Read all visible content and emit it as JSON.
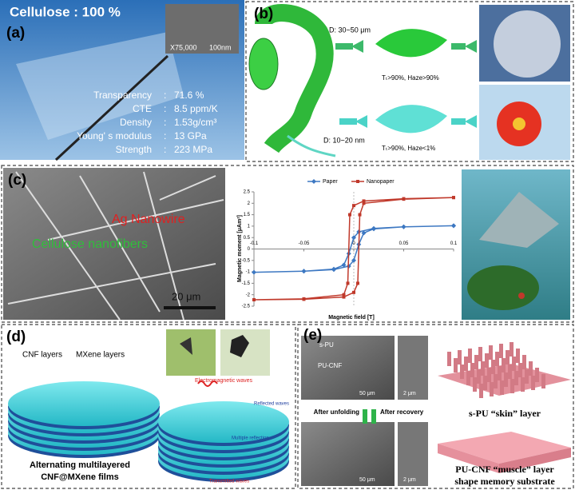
{
  "separator": ":",
  "panel_a": {
    "label": "(a)",
    "title": "Cellulose : 100 %",
    "magnification": "X75,000",
    "scale_bar": "100nm",
    "properties": [
      {
        "name": "Transparency",
        "value": "71.6 %"
      },
      {
        "name": "CTE",
        "value": "8.5 ppm/K"
      },
      {
        "name": "Density",
        "value": "1.53g/cm³"
      },
      {
        "name": "Young' s modulus",
        "value": "13 GPa"
      },
      {
        "name": "Strength",
        "value": "223 MPa"
      }
    ]
  },
  "panel_b": {
    "label": "(b)",
    "fiber_large": "D: 30~50 μm",
    "sheet_hazy": "Tₜ>90%, Haze>90%",
    "fiber_small": "D: 10~20 nm",
    "sheet_clear": "Tₜ>90%, Haze<1%"
  },
  "panel_c": {
    "label": "(c)",
    "silver": "Ag Nanowire",
    "cellulose": "Cellulose nanofibers",
    "scale_bar": "20 μm"
  },
  "chart_data": {
    "type": "line",
    "xlabel": "Magnetic field [T]",
    "ylabel": "Magnetic moment [μAm²]",
    "xlim": [
      -0.1,
      0.1
    ],
    "ylim": [
      -2.5,
      2.5
    ],
    "xticks": [
      -0.1,
      -0.05,
      0,
      0.05,
      0.1
    ],
    "yticks": [
      -2.5,
      -2,
      -1.5,
      -1,
      -0.5,
      0,
      0.5,
      1,
      1.5,
      2,
      2.5
    ],
    "legend": "top",
    "series": [
      {
        "name": "Paper",
        "color": "#3d78c2",
        "marker": "diamond",
        "x": [
          0.1,
          0.05,
          0.02,
          0.01,
          0.005,
          0,
          -0.005,
          -0.02,
          -0.05,
          -0.1,
          -0.05,
          -0.02,
          -0.01,
          -0.005,
          0,
          0.005,
          0.02,
          0.05,
          0.1
        ],
        "values": [
          1.02,
          0.97,
          0.88,
          0.7,
          0.2,
          -0.5,
          -0.75,
          -0.9,
          -0.97,
          -1.02,
          -0.97,
          -0.88,
          -0.7,
          -0.2,
          0.5,
          0.75,
          0.9,
          0.97,
          1.02
        ]
      },
      {
        "name": "Nanopaper",
        "color": "#c0392b",
        "marker": "square",
        "x": [
          0.1,
          0.05,
          0.01,
          0,
          -0.004,
          -0.006,
          -0.01,
          -0.05,
          -0.1,
          -0.05,
          -0.01,
          0,
          0.004,
          0.006,
          0.01,
          0.05,
          0.1
        ],
        "values": [
          2.25,
          2.2,
          2.1,
          1.9,
          1.5,
          -1.5,
          -2.0,
          -2.18,
          -2.22,
          -2.2,
          -2.1,
          -1.9,
          -1.5,
          1.5,
          2.0,
          2.18,
          2.25
        ]
      }
    ]
  },
  "panel_d": {
    "label": "(d)",
    "cnf": "CNF layers",
    "mxene": "MXene layers",
    "caption_1": "Alternating multilayered",
    "caption_2": "CNF@MXene films",
    "em_waves": "Electromagnetic waves",
    "reflected": "Reflected waves",
    "multiple": "Multiple reflection",
    "transmitted": "Transmitted waves"
  },
  "panel_e": {
    "label": "(e)",
    "layer_top": "s-PU",
    "layer_bottom": "PU-CNF",
    "scale_large": "50 μm",
    "scale_small": "2 μm",
    "unfolding": "After unfolding",
    "recovery": "After recovery",
    "scale_large_2": "50 μm",
    "scale_small_2": "2 μm",
    "skin": "s-PU “skin” layer",
    "muscle_1": "PU-CNF “muscle” layer",
    "muscle_2": "shape memory substrate"
  }
}
